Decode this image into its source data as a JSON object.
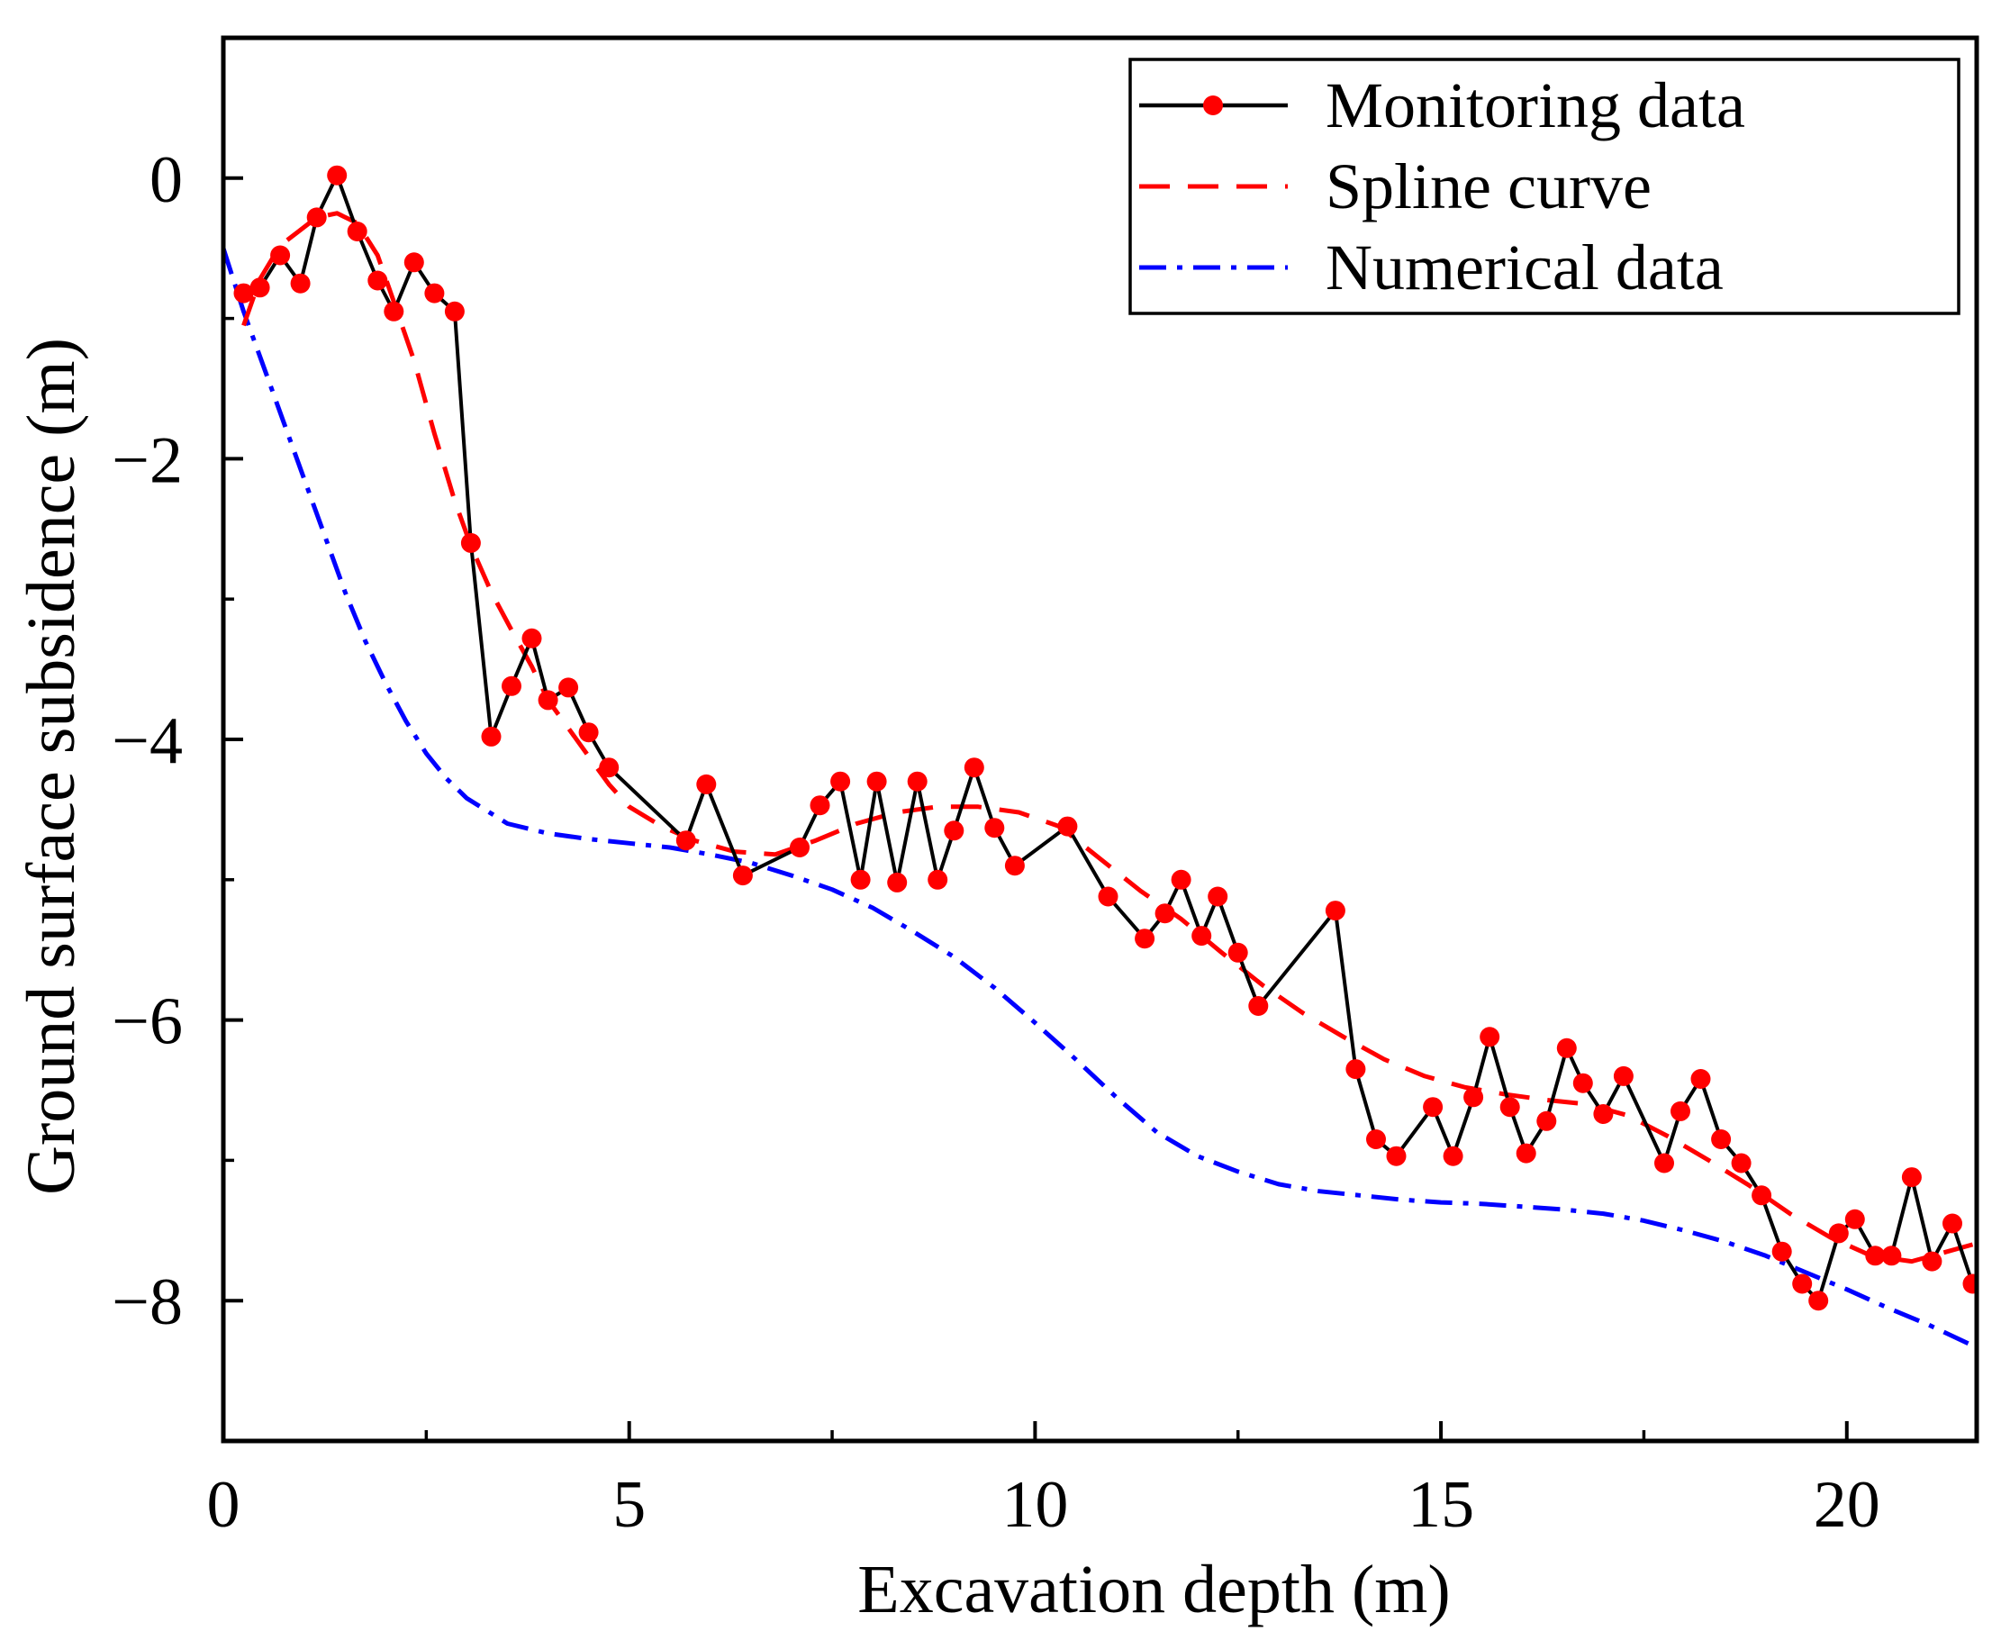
{
  "chart_data": {
    "type": "line",
    "title": "",
    "xlabel": "Excavation depth (m)",
    "ylabel": "Ground surface subsidence (m)",
    "xlim": [
      0,
      21.6
    ],
    "ylim": [
      -9,
      1
    ],
    "xticks": [
      0,
      5,
      10,
      15,
      20
    ],
    "yticks": [
      0,
      -2,
      -4,
      -6,
      -8
    ],
    "grid": false,
    "legend_position": "top-right",
    "series": [
      {
        "name": "Monitoring data",
        "color": "#000000",
        "marker_color": "#ff0000",
        "style": "solid-with-markers",
        "x": [
          0.25,
          0.45,
          0.7,
          0.95,
          1.15,
          1.4,
          1.65,
          1.9,
          2.1,
          2.35,
          2.6,
          2.85,
          3.05,
          3.3,
          3.55,
          3.8,
          4.0,
          4.25,
          4.5,
          4.75,
          5.7,
          5.95,
          6.4,
          7.1,
          7.35,
          7.6,
          7.85,
          8.05,
          8.3,
          8.55,
          8.8,
          9.0,
          9.25,
          9.5,
          9.75,
          10.4,
          10.9,
          11.35,
          11.6,
          11.8,
          12.05,
          12.25,
          12.5,
          12.75,
          13.7,
          13.95,
          14.2,
          14.45,
          14.9,
          15.15,
          15.4,
          15.6,
          15.85,
          16.05,
          16.3,
          16.55,
          16.75,
          17.0,
          17.25,
          17.75,
          17.95,
          18.2,
          18.45,
          18.7,
          18.95,
          19.2,
          19.45,
          19.65,
          19.9,
          20.1,
          20.35,
          20.55,
          20.8,
          21.05,
          21.3,
          21.55
        ],
        "y": [
          -0.82,
          -0.78,
          -0.55,
          -0.75,
          -0.28,
          0.02,
          -0.38,
          -0.73,
          -0.95,
          -0.6,
          -0.82,
          -0.95,
          -2.6,
          -3.98,
          -3.62,
          -3.28,
          -3.72,
          -3.63,
          -3.95,
          -4.2,
          -4.72,
          -4.32,
          -4.97,
          -4.77,
          -4.47,
          -4.3,
          -5.0,
          -4.3,
          -5.02,
          -4.3,
          -5.0,
          -4.65,
          -4.2,
          -4.63,
          -4.9,
          -4.62,
          -5.12,
          -5.42,
          -5.24,
          -5.0,
          -5.4,
          -5.12,
          -5.52,
          -5.9,
          -5.22,
          -6.35,
          -6.85,
          -6.97,
          -6.62,
          -6.97,
          -6.55,
          -6.12,
          -6.62,
          -6.95,
          -6.72,
          -6.2,
          -6.45,
          -6.67,
          -6.4,
          -7.02,
          -6.65,
          -6.42,
          -6.85,
          -7.02,
          -7.25,
          -7.65,
          -7.88,
          -8.0,
          -7.52,
          -7.42,
          -7.68,
          -7.68,
          -7.12,
          -7.72,
          -7.45,
          -7.88
        ]
      },
      {
        "name": "Spline curve",
        "color": "#ff0000",
        "style": "dashed",
        "x": [
          0.25,
          0.45,
          0.7,
          0.95,
          1.15,
          1.4,
          1.65,
          1.9,
          2.1,
          2.35,
          2.6,
          2.85,
          3.05,
          3.3,
          3.55,
          3.8,
          4.0,
          4.25,
          4.5,
          4.75,
          5.0,
          5.4,
          5.8,
          6.3,
          6.8,
          7.3,
          7.8,
          8.3,
          8.8,
          9.3,
          9.8,
          10.3,
          10.8,
          11.3,
          11.8,
          12.3,
          12.8,
          13.3,
          13.8,
          14.3,
          14.8,
          15.3,
          15.8,
          16.3,
          16.8,
          17.3,
          17.8,
          18.3,
          18.8,
          19.3,
          19.8,
          20.3,
          20.8,
          21.55
        ],
        "y": [
          -1.05,
          -0.72,
          -0.48,
          -0.37,
          -0.28,
          -0.25,
          -0.32,
          -0.55,
          -0.88,
          -1.3,
          -1.82,
          -2.3,
          -2.62,
          -2.95,
          -3.22,
          -3.48,
          -3.72,
          -3.92,
          -4.12,
          -4.32,
          -4.48,
          -4.62,
          -4.72,
          -4.8,
          -4.82,
          -4.72,
          -4.6,
          -4.52,
          -4.48,
          -4.48,
          -4.52,
          -4.62,
          -4.85,
          -5.08,
          -5.28,
          -5.52,
          -5.75,
          -5.95,
          -6.12,
          -6.28,
          -6.4,
          -6.48,
          -6.53,
          -6.57,
          -6.6,
          -6.68,
          -6.83,
          -7.0,
          -7.18,
          -7.38,
          -7.55,
          -7.68,
          -7.72,
          -7.6
        ]
      },
      {
        "name": "Numerical data",
        "color": "#0000ff",
        "style": "dash-dot",
        "x": [
          0,
          0.25,
          0.5,
          0.75,
          1.0,
          1.25,
          1.5,
          1.75,
          2.0,
          2.25,
          2.5,
          2.75,
          3.0,
          3.5,
          4.0,
          4.5,
          5.0,
          5.5,
          6.0,
          6.5,
          7.0,
          7.5,
          8.0,
          8.5,
          9.0,
          9.5,
          10.0,
          10.5,
          11.0,
          11.5,
          12.0,
          12.5,
          13.0,
          13.5,
          14.0,
          14.5,
          15.0,
          15.5,
          16.0,
          16.5,
          17.0,
          17.5,
          18.0,
          18.5,
          19.0,
          19.5,
          20.0,
          20.5,
          21.0,
          21.55
        ],
        "y": [
          -0.5,
          -0.95,
          -1.35,
          -1.75,
          -2.15,
          -2.55,
          -2.95,
          -3.3,
          -3.6,
          -3.87,
          -4.1,
          -4.28,
          -4.42,
          -4.6,
          -4.67,
          -4.71,
          -4.74,
          -4.77,
          -4.82,
          -4.88,
          -4.97,
          -5.07,
          -5.2,
          -5.37,
          -5.55,
          -5.77,
          -6.02,
          -6.28,
          -6.55,
          -6.8,
          -6.97,
          -7.08,
          -7.17,
          -7.22,
          -7.25,
          -7.28,
          -7.3,
          -7.31,
          -7.33,
          -7.35,
          -7.38,
          -7.43,
          -7.5,
          -7.58,
          -7.68,
          -7.8,
          -7.92,
          -8.05,
          -8.17,
          -8.32
        ]
      }
    ]
  }
}
